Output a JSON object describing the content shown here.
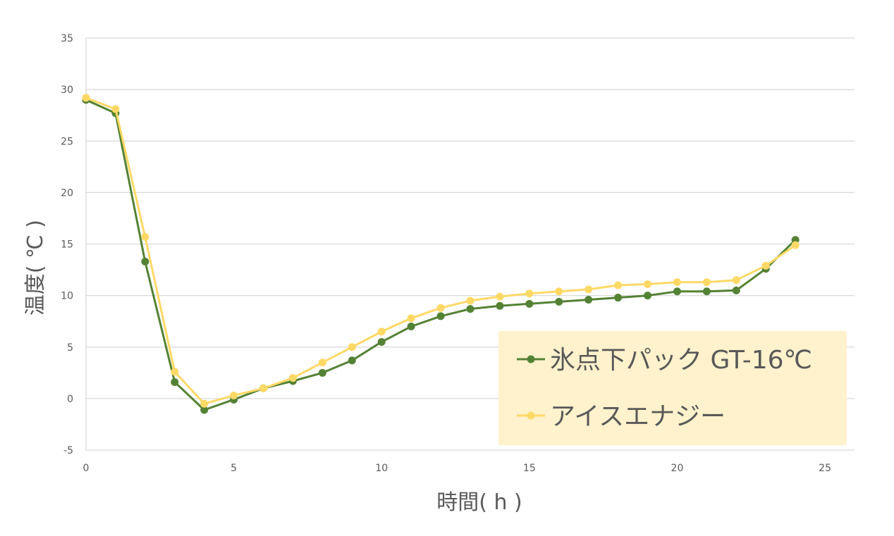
{
  "chart_data": {
    "type": "line",
    "title": "",
    "xlabel": "時間( h )",
    "ylabel": "温度( ℃ )",
    "xlim": [
      0,
      26
    ],
    "ylim": [
      -5,
      35
    ],
    "x_ticks": [
      "0",
      "5",
      "10",
      "15",
      "20",
      "25"
    ],
    "y_ticks": [
      "-5",
      "0",
      "5",
      "10",
      "15",
      "20",
      "25",
      "30",
      "35"
    ],
    "grid": true,
    "legend_position": "bottom-right",
    "x": [
      0,
      1,
      2,
      3,
      4,
      5,
      6,
      7,
      8,
      9,
      10,
      11,
      12,
      13,
      14,
      15,
      16,
      17,
      18,
      19,
      20,
      21,
      22,
      23,
      24
    ],
    "series": [
      {
        "name": "氷点下パック GT-16℃",
        "color": "#548235",
        "values": [
          29.0,
          27.7,
          13.3,
          1.6,
          -1.1,
          -0.1,
          1.0,
          1.7,
          2.5,
          3.7,
          5.5,
          7.0,
          8.0,
          8.7,
          9.0,
          9.2,
          9.4,
          9.6,
          9.8,
          10.0,
          10.4,
          10.4,
          10.5,
          12.6,
          15.4
        ]
      },
      {
        "name": "アイスエナジー",
        "color": "#FFD966",
        "values": [
          29.2,
          28.1,
          15.7,
          2.6,
          -0.5,
          0.3,
          1.0,
          2.0,
          3.5,
          5.0,
          6.5,
          7.8,
          8.8,
          9.5,
          9.9,
          10.2,
          10.4,
          10.6,
          11.0,
          11.1,
          11.3,
          11.3,
          11.5,
          12.9,
          14.9
        ]
      }
    ],
    "legend_background": "#FFF2CC",
    "grid_color": "#D9D9D9"
  }
}
